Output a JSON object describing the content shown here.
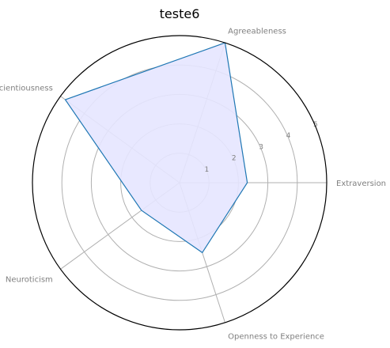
{
  "chart_data": {
    "type": "radar",
    "title": "teste6",
    "axes": [
      "Extraversion",
      "Agreeableness",
      "Conscientiousness",
      "Neuroticism",
      "Openness to Experience"
    ],
    "series": [
      {
        "values": [
          2.3,
          5.0,
          4.8,
          1.6,
          2.5
        ]
      }
    ],
    "r_ticks": [
      "1",
      "2",
      "3",
      "4",
      "5"
    ],
    "rlim": [
      0,
      5
    ],
    "grid": true,
    "colors": {
      "line": "#1f77b4",
      "fill": "#e5e5ff",
      "grid": "#b0b0b0",
      "frame": "#000000"
    }
  }
}
